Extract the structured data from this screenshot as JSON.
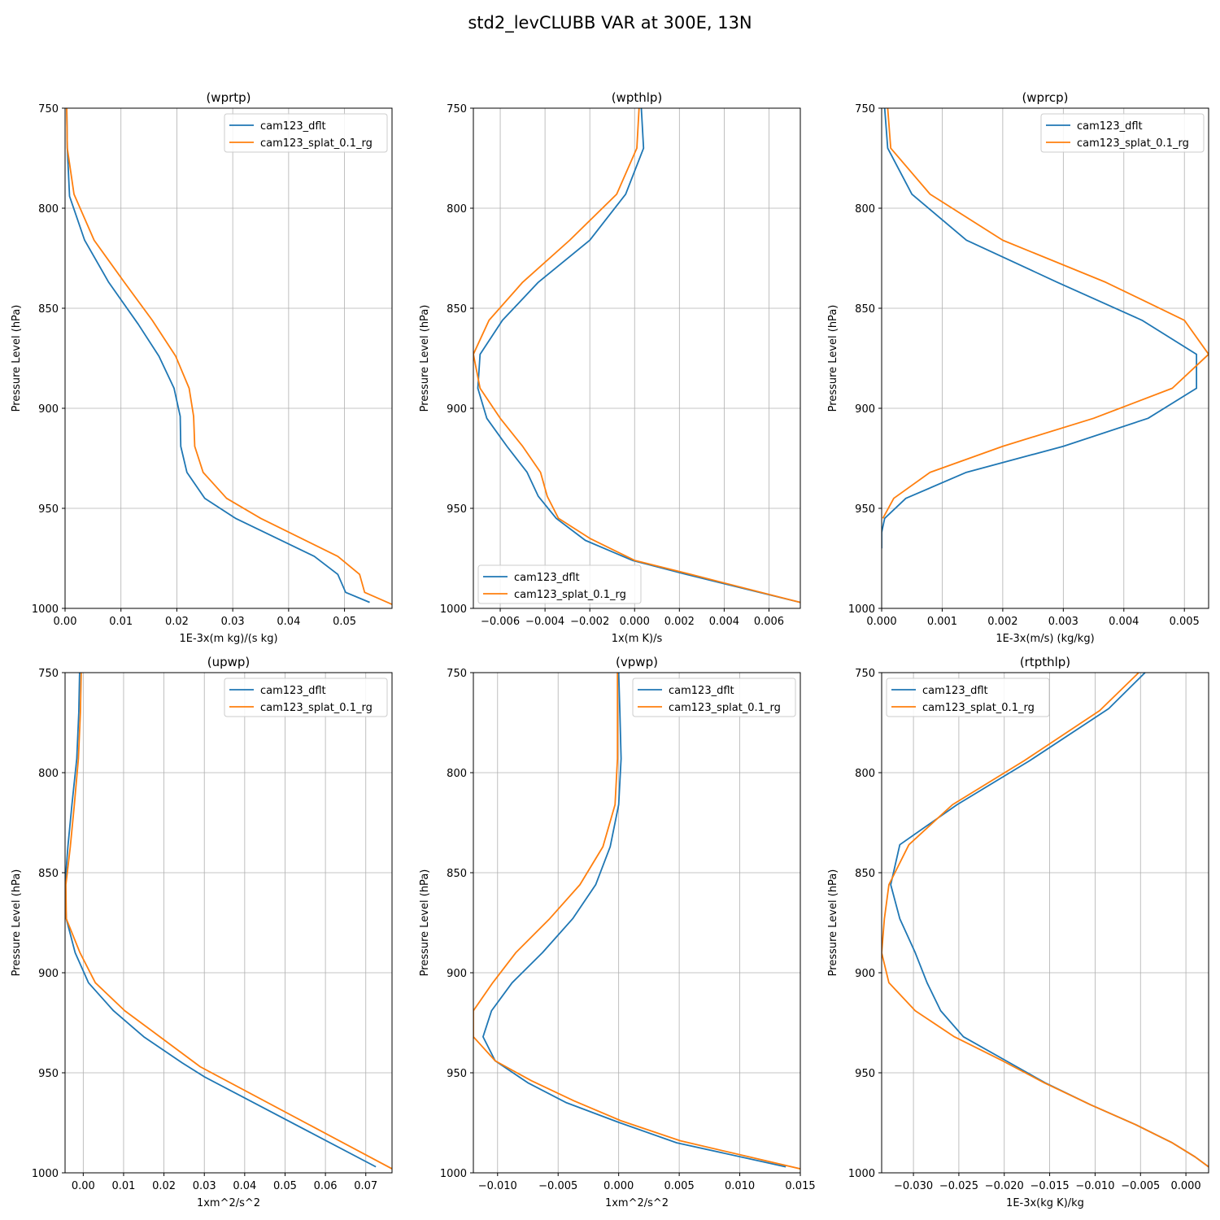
{
  "suptitle": "std2_levCLUBB VAR at 300E, 13N",
  "colors": {
    "cam123_dflt": "#1f77b4",
    "cam123_splat_0.1_rg": "#ff7f0e"
  },
  "chart_data": [
    {
      "type": "line",
      "title": "(wprtp)",
      "xlabel": "1E-3x(m kg)/(s kg)",
      "ylabel": "Pressure Level (hPa)",
      "xlim": [
        0,
        0.0585
      ],
      "ylim": [
        1000,
        750
      ],
      "xticks": [
        0,
        0.01,
        0.02,
        0.03,
        0.04,
        0.05
      ],
      "xtick_labels": [
        "0.00",
        "0.01",
        "0.02",
        "0.03",
        "0.04",
        "0.05"
      ],
      "yticks": [
        750,
        800,
        850,
        900,
        950
      ],
      "ytick_labels": [
        "750",
        "800",
        "850",
        "900",
        "950"
      ],
      "ybottom_label": "1000",
      "legend": "upper right",
      "grid": true,
      "series": [
        {
          "name": "cam123_dflt",
          "x": [
            0.0003,
            0.0004,
            0.0008,
            0.0035,
            0.0078,
            0.0131,
            0.0168,
            0.0195,
            0.0206,
            0.0207,
            0.0218,
            0.025,
            0.0305,
            0.0446,
            0.0488,
            0.0502,
            0.0545
          ],
          "y": [
            750,
            770,
            794,
            816,
            837,
            858,
            874,
            890,
            904,
            919,
            932,
            945,
            955,
            974,
            983,
            992,
            997
          ]
        },
        {
          "name": "cam123_splat_0.1_rg",
          "x": [
            0.0003,
            0.0004,
            0.0016,
            0.0052,
            0.0106,
            0.0156,
            0.0198,
            0.0222,
            0.023,
            0.0232,
            0.0247,
            0.0289,
            0.035,
            0.0488,
            0.0527,
            0.0536,
            0.0585
          ],
          "y": [
            750,
            770,
            793,
            816,
            837,
            856,
            874,
            890,
            904,
            919,
            932,
            945,
            955,
            974,
            983,
            992,
            998
          ]
        }
      ]
    },
    {
      "type": "line",
      "title": "(wpthlp)",
      "xlabel": "1x(m K)/s",
      "ylabel": "Pressure Level (hPa)",
      "xlim": [
        -0.0072,
        0.0074
      ],
      "ylim": [
        1000,
        750
      ],
      "xticks": [
        -0.006,
        -0.004,
        -0.002,
        0,
        0.002,
        0.004,
        0.006
      ],
      "xtick_labels": [
        "−0.006",
        "−0.004",
        "−0.002",
        "0.000",
        "0.002",
        "0.004",
        "0.006"
      ],
      "yticks": [
        750,
        800,
        850,
        900,
        950
      ],
      "ytick_labels": [
        "750",
        "800",
        "850",
        "900",
        "950"
      ],
      "ybottom_label": "1000",
      "legend": "lower left",
      "grid": true,
      "series": [
        {
          "name": "cam123_dflt",
          "x": [
            0.0003,
            0.0004,
            -0.0004,
            -0.002,
            -0.0043,
            -0.0059,
            -0.0069,
            -0.007,
            -0.0066,
            -0.0057,
            -0.0048,
            -0.0043,
            -0.0035,
            -0.0022,
            -0.0001,
            0.0023,
            0.0074
          ],
          "y": [
            750,
            770,
            793,
            816,
            837,
            856,
            873,
            890,
            905,
            919,
            932,
            944,
            955,
            966,
            976,
            983,
            997
          ]
        },
        {
          "name": "cam123_splat_0.1_rg",
          "x": [
            0.0002,
            0.0001,
            -0.0008,
            -0.0029,
            -0.005,
            -0.0065,
            -0.0072,
            -0.0069,
            -0.006,
            -0.005,
            -0.0042,
            -0.0039,
            -0.0034,
            -0.002,
            0.0,
            0.0025,
            0.0074
          ],
          "y": [
            750,
            770,
            793,
            816,
            837,
            856,
            873,
            890,
            905,
            919,
            932,
            944,
            955,
            965,
            976,
            983,
            997
          ]
        }
      ]
    },
    {
      "type": "line",
      "title": "(wprcp)",
      "xlabel": "1E-3x(m/s) (kg/kg)",
      "ylabel": "Pressure Level (hPa)",
      "xlim": [
        0,
        0.0054
      ],
      "ylim": [
        1000,
        750
      ],
      "xticks": [
        0,
        0.001,
        0.002,
        0.003,
        0.004,
        0.005
      ],
      "xtick_labels": [
        "0.000",
        "0.001",
        "0.002",
        "0.003",
        "0.004",
        "0.005"
      ],
      "yticks": [
        750,
        800,
        850,
        900,
        950
      ],
      "ytick_labels": [
        "750",
        "800",
        "850",
        "900",
        "950"
      ],
      "ybottom_label": "1000",
      "legend": "upper right",
      "grid": true,
      "series": [
        {
          "name": "cam123_dflt",
          "x": [
            5e-05,
            0.0001,
            0.0005,
            0.0014,
            0.0029,
            0.0043,
            0.0052,
            0.0052,
            0.0044,
            0.003,
            0.0014,
            0.0004,
            5e-05,
            0.0,
            0.0
          ],
          "y": [
            750,
            770,
            793,
            816,
            837,
            856,
            873,
            890,
            905,
            919,
            932,
            945,
            955,
            962,
            970
          ]
        },
        {
          "name": "cam123_splat_0.1_rg",
          "x": [
            0.0001,
            0.00015,
            0.0008,
            0.002,
            0.0037,
            0.005,
            0.0054,
            0.0048,
            0.0035,
            0.002,
            0.0008,
            0.0002,
            2e-05
          ],
          "y": [
            750,
            770,
            793,
            816,
            837,
            856,
            873,
            890,
            905,
            919,
            932,
            945,
            955
          ]
        }
      ]
    },
    {
      "type": "line",
      "title": "(upwp)",
      "xlabel": "1xm^2/s^2",
      "ylabel": "Pressure Level (hPa)",
      "xlim": [
        -0.0045,
        0.0765
      ],
      "ylim": [
        1000,
        750
      ],
      "xticks": [
        0,
        0.01,
        0.02,
        0.03,
        0.04,
        0.05,
        0.06,
        0.07
      ],
      "xtick_labels": [
        "0.00",
        "0.01",
        "0.02",
        "0.03",
        "0.04",
        "0.05",
        "0.06",
        "0.07"
      ],
      "yticks": [
        750,
        800,
        850,
        900,
        950
      ],
      "ytick_labels": [
        "750",
        "800",
        "850",
        "900",
        "950"
      ],
      "ybottom_label": "1000",
      "legend": "upper right",
      "grid": true,
      "series": [
        {
          "name": "cam123_dflt",
          "x": [
            -0.0009,
            -0.0011,
            -0.0016,
            -0.0028,
            -0.0038,
            -0.0045,
            -0.0042,
            -0.002,
            0.0013,
            0.0075,
            0.015,
            0.0245,
            0.03,
            0.0725
          ],
          "y": [
            750,
            770,
            793,
            816,
            837,
            856,
            873,
            890,
            905,
            919,
            932,
            945,
            952,
            997
          ]
        },
        {
          "name": "cam123_splat_0.1_rg",
          "x": [
            -0.0005,
            -0.0007,
            -0.0012,
            -0.0022,
            -0.0032,
            -0.0043,
            -0.0042,
            -0.0008,
            0.003,
            0.0103,
            0.019,
            0.029,
            0.0765
          ],
          "y": [
            750,
            770,
            793,
            816,
            837,
            856,
            873,
            890,
            905,
            919,
            932,
            947,
            998
          ]
        }
      ]
    },
    {
      "type": "line",
      "title": "(vpwp)",
      "xlabel": "1xm^2/s^2",
      "ylabel": "Pressure Level (hPa)",
      "xlim": [
        -0.012,
        0.015
      ],
      "ylim": [
        1000,
        750
      ],
      "xticks": [
        -0.01,
        -0.005,
        0,
        0.005,
        0.01,
        0.015
      ],
      "xtick_labels": [
        "−0.010",
        "−0.005",
        "0.000",
        "0.005",
        "0.010",
        "0.015"
      ],
      "yticks": [
        750,
        800,
        850,
        900,
        950
      ],
      "ytick_labels": [
        "750",
        "800",
        "850",
        "900",
        "950"
      ],
      "ybottom_label": "1000",
      "legend": "upper right",
      "grid": true,
      "series": [
        {
          "name": "cam123_dflt",
          "x": [
            0.0,
            0.0001,
            0.0002,
            0.0,
            -0.0007,
            -0.0019,
            -0.0038,
            -0.0063,
            -0.0088,
            -0.0105,
            -0.0112,
            -0.0102,
            -0.0075,
            -0.0043,
            0.0001,
            0.0048,
            0.0138
          ],
          "y": [
            750,
            770,
            793,
            816,
            837,
            856,
            873,
            890,
            905,
            919,
            932,
            944,
            955,
            965,
            975,
            985,
            997
          ]
        },
        {
          "name": "cam123_splat_0.1_rg",
          "x": [
            -0.0001,
            -0.0001,
            -0.0001,
            -0.0003,
            -0.0013,
            -0.0032,
            -0.0057,
            -0.0085,
            -0.0104,
            -0.012,
            -0.012,
            -0.0102,
            -0.0072,
            -0.0037,
            0.0002,
            0.0051,
            0.015
          ],
          "y": [
            750,
            770,
            793,
            816,
            837,
            856,
            873,
            890,
            905,
            919,
            932,
            944,
            954,
            964,
            974,
            984,
            998
          ]
        }
      ]
    },
    {
      "type": "line",
      "title": "(rtpthlp)",
      "xlabel": "1E-3x(kg K)/kg",
      "ylabel": "Pressure Level (hPa)",
      "xlim": [
        -0.0335,
        0.0025
      ],
      "ylim": [
        1000,
        750
      ],
      "xticks": [
        -0.03,
        -0.025,
        -0.02,
        -0.015,
        -0.01,
        -0.005,
        0
      ],
      "xtick_labels": [
        "−0.030",
        "−0.025",
        "−0.020",
        "−0.015",
        "−0.010",
        "−0.005",
        "0.000"
      ],
      "yticks": [
        750,
        800,
        850,
        900,
        950
      ],
      "ytick_labels": [
        "750",
        "800",
        "850",
        "900",
        "950"
      ],
      "ybottom_label": "1000",
      "legend": "upper left",
      "grid": true,
      "series": [
        {
          "name": "cam123_dflt",
          "x": [
            -0.0045,
            -0.0085,
            -0.0172,
            -0.0252,
            -0.0315,
            -0.0325,
            -0.0315,
            -0.0298,
            -0.0285,
            -0.027,
            -0.0245,
            -0.0198,
            -0.0155,
            -0.0105,
            -0.0055,
            -0.0015,
            0.001,
            0.0025
          ],
          "y": [
            750,
            768,
            794,
            816,
            836,
            856,
            873,
            890,
            905,
            919,
            932,
            944,
            955,
            966,
            976,
            985,
            992,
            997
          ]
        },
        {
          "name": "cam123_splat_0.1_rg",
          "x": [
            -0.0052,
            -0.0095,
            -0.0178,
            -0.0257,
            -0.0305,
            -0.0327,
            -0.0332,
            -0.0335,
            -0.0327,
            -0.0298,
            -0.0255,
            -0.0202,
            -0.0156,
            -0.0105,
            -0.0055,
            -0.0015,
            0.001,
            0.0025
          ],
          "y": [
            750,
            769,
            794,
            816,
            836,
            856,
            873,
            890,
            905,
            919,
            932,
            944,
            955,
            966,
            976,
            985,
            992,
            997
          ]
        }
      ]
    }
  ]
}
